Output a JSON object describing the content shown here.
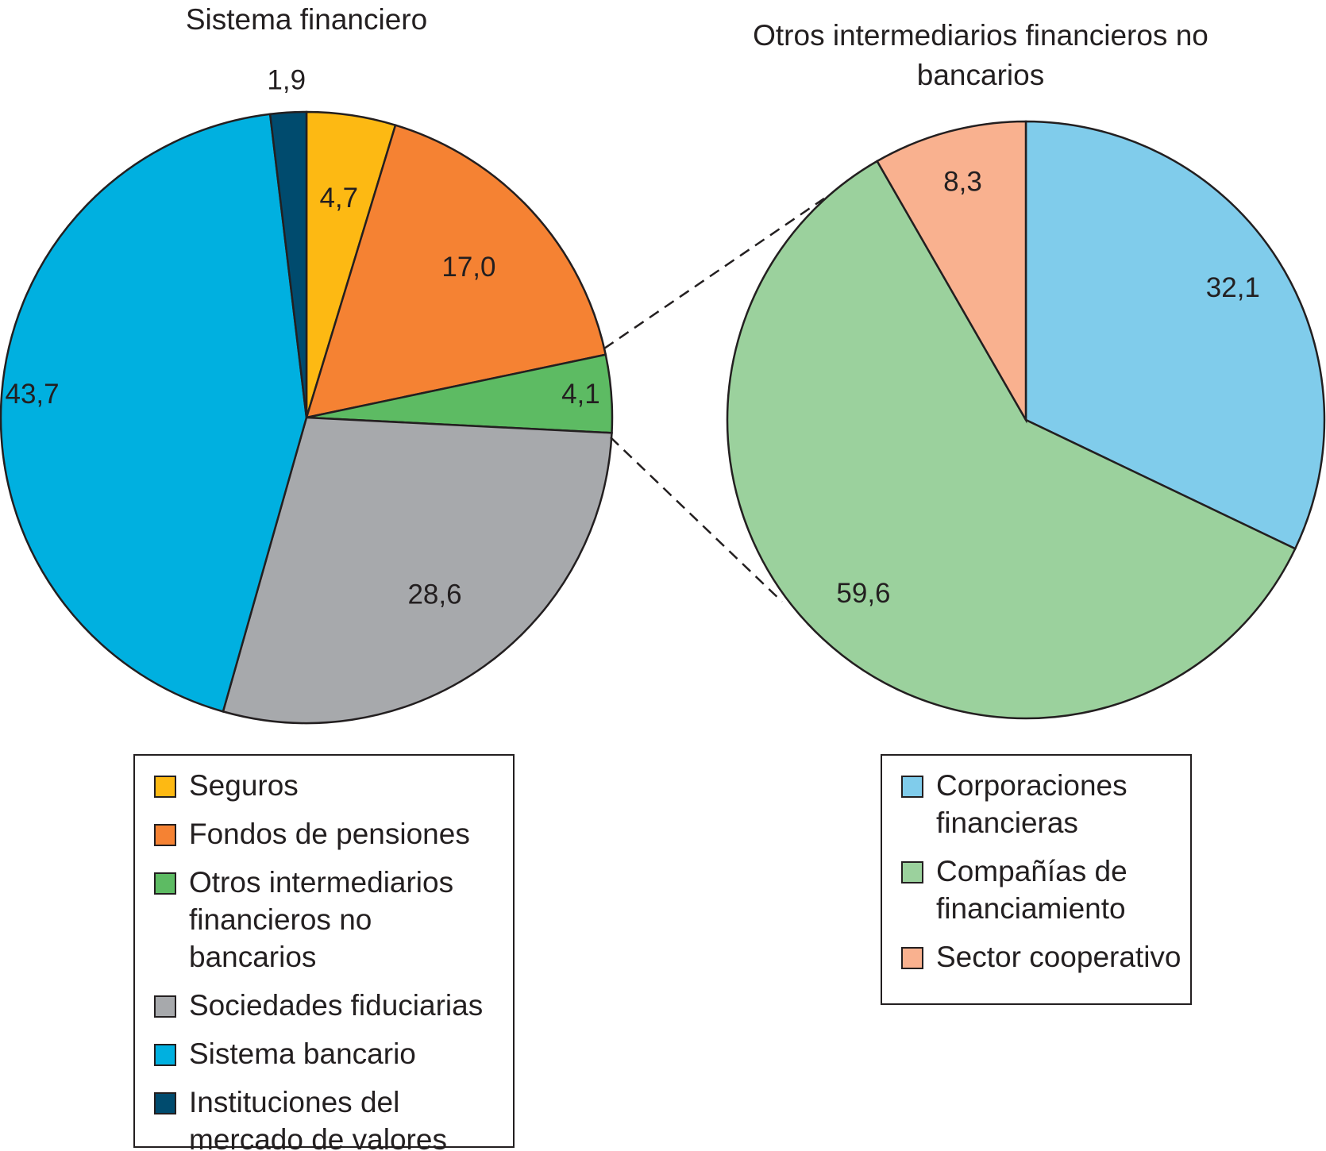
{
  "chart_data": [
    {
      "type": "pie",
      "title": "Sistema financiero",
      "categories": [
        "Seguros",
        "Fondos de pensiones",
        "Otros intermediarios financieros no bancarios",
        "Sociedades fiduciarias",
        "Sistema bancario",
        "Instituciones del mercado de valores"
      ],
      "values": [
        4.7,
        17.0,
        4.1,
        28.6,
        43.7,
        1.9
      ],
      "value_labels": [
        "4,7",
        "17,0",
        "4,1",
        "28,6",
        "43,7",
        "1,9"
      ],
      "colors": [
        "#fdb913",
        "#f58233",
        "#5dbb63",
        "#a7a9ac",
        "#00b0e0",
        "#004b6e"
      ]
    },
    {
      "type": "pie",
      "title": "Otros intermediarios financieros no bancarios",
      "categories": [
        "Corporaciones financieras",
        "Compañías de financiamiento",
        "Sector cooperativo"
      ],
      "values": [
        32.1,
        59.6,
        8.3
      ],
      "value_labels": [
        "32,1",
        "59,6",
        "8,3"
      ],
      "colors": [
        "#80cceb",
        "#9bd19d",
        "#f9b18f"
      ]
    }
  ]
}
